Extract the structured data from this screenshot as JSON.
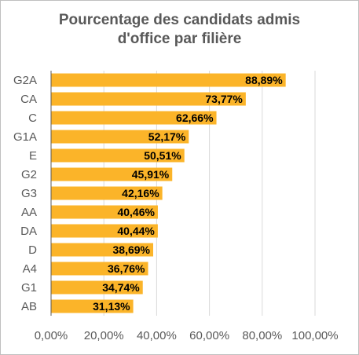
{
  "chart_data": {
    "type": "bar",
    "orientation": "horizontal",
    "title_lines": [
      "Pourcentage des candidats admis",
      "d'office par filière"
    ],
    "categories": [
      "G2A",
      "CA",
      "C",
      "G1A",
      "E",
      "G2",
      "G3",
      "AA",
      "DA",
      "D",
      "A4",
      "G1",
      "AB"
    ],
    "values": [
      88.89,
      73.77,
      62.66,
      52.17,
      50.51,
      45.91,
      42.16,
      40.46,
      40.44,
      38.69,
      36.76,
      34.74,
      31.13
    ],
    "data_labels": [
      "88,89%",
      "73,77%",
      "62,66%",
      "52,17%",
      "50,51%",
      "45,91%",
      "42,16%",
      "40,46%",
      "40,44%",
      "38,69%",
      "36,76%",
      "34,74%",
      "31,13%"
    ],
    "xlim": [
      0,
      100
    ],
    "x_ticks": [
      0,
      20,
      40,
      60,
      80,
      100
    ],
    "x_tick_labels": [
      "0,00%",
      "20,00%",
      "40,00%",
      "60,00%",
      "80,00%",
      "100,00%"
    ],
    "grid": true,
    "legend": "none",
    "bar_color": "#FBB429",
    "grid_color": "#d9d9d9",
    "text_color": "#595959"
  }
}
